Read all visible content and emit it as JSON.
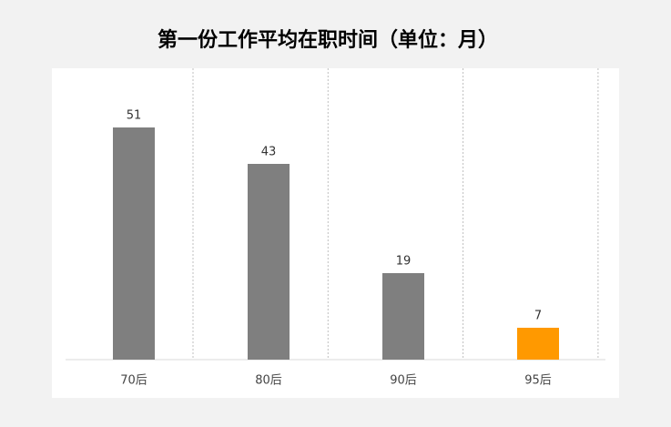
{
  "chart_data": {
    "type": "bar",
    "title": "第一份工作平均在职时间（单位：月）",
    "categories": [
      "70后",
      "80后",
      "90后",
      "95后"
    ],
    "values": [
      51,
      43,
      19,
      7
    ],
    "colors": [
      "#7f7f7f",
      "#7f7f7f",
      "#7f7f7f",
      "#ff9900"
    ]
  }
}
